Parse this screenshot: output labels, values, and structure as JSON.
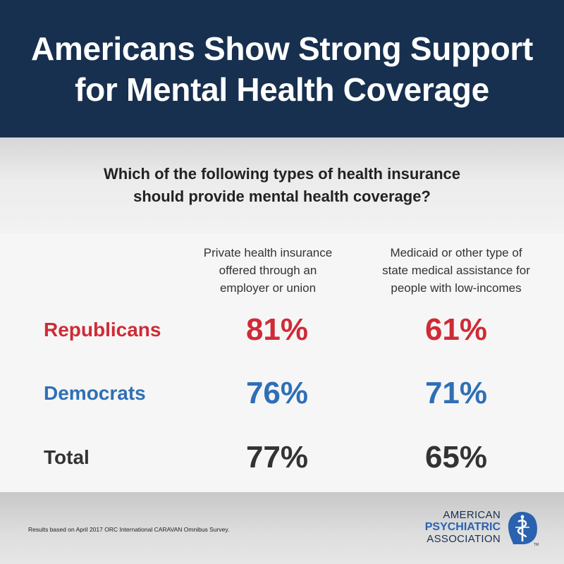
{
  "header": {
    "title_line1": "Americans Show Strong Support",
    "title_line2": "for Mental Health Coverage"
  },
  "question": {
    "line1": "Which of the following types of health insurance",
    "line2": "should provide mental health coverage?"
  },
  "columns": [
    {
      "lines": [
        "Private health insurance",
        "offered through an",
        "employer or union"
      ]
    },
    {
      "lines": [
        "Medicaid or other type of",
        "state medical assistance for",
        "people with low-incomes"
      ]
    }
  ],
  "rows": [
    {
      "label": "Republicans",
      "values": [
        "81%",
        "61%"
      ],
      "color": "#cf2b36"
    },
    {
      "label": "Democrats",
      "values": [
        "76%",
        "71%"
      ],
      "color": "#2f6fb6"
    },
    {
      "label": "Total",
      "values": [
        "77%",
        "65%"
      ],
      "color": "#333333"
    }
  ],
  "footer": {
    "note": "Results based on April 2017 ORC International CARAVAN Omnibus Survey.",
    "logo_line1": "AMERICAN",
    "logo_line2": "PSYCHIATRIC",
    "logo_line3": "ASSOCIATION",
    "logo_icon": "apa-seal-icon",
    "logo_mark": "TM"
  },
  "colors": {
    "header_bg": "#17304f",
    "republican": "#cf2b36",
    "democrat": "#2f6fb6",
    "total": "#333333"
  }
}
